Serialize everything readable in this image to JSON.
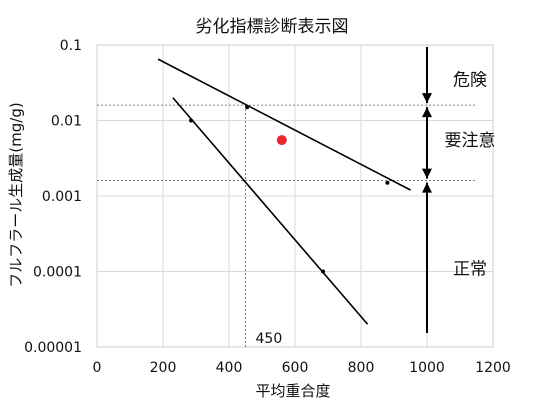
{
  "chart_data": {
    "type": "line",
    "title": "劣化指標診断表示図",
    "xlabel": "平均重合度",
    "ylabel": "フルフラール生成量(mg/g)",
    "xlim": [
      0,
      1200
    ],
    "ylim": [
      1e-05,
      0.1
    ],
    "yscale": "log",
    "x_ticks": [
      0,
      200,
      400,
      600,
      800,
      1000,
      1200
    ],
    "x_tick_labels": [
      "0",
      "200",
      "400",
      "600",
      "800",
      "1000",
      "1200"
    ],
    "y_ticks": [
      0.1,
      0.01,
      0.001,
      0.0001,
      1e-05
    ],
    "y_tick_labels": [
      "0.1",
      "0.01",
      "0.001",
      "0.0001",
      "0.00001"
    ],
    "grid": true,
    "series": [
      {
        "line": {
          "x": [
            185,
            950
          ],
          "y": [
            0.065,
            0.0012
          ]
        },
        "markers": {
          "x": [
            455,
            880
          ],
          "y": [
            0.015,
            0.0015
          ]
        }
      },
      {
        "line": {
          "x": [
            230,
            820
          ],
          "y": [
            0.02,
            2e-05
          ]
        },
        "markers": {
          "x": [
            285,
            685
          ],
          "y": [
            0.01,
            0.0001
          ]
        }
      }
    ],
    "highlight_point": {
      "x": 560,
      "y": 0.0055,
      "color": "#e8262b"
    },
    "reference_lines": {
      "horizontal": [
        0.016,
        0.0016
      ],
      "vertical": {
        "x": 450,
        "label": "450"
      }
    },
    "zone_arrow_x": 1000,
    "zones": [
      {
        "label": "危険",
        "y": 0.035
      },
      {
        "label": "要注意",
        "y": 0.0055
      },
      {
        "label": "正常",
        "y": 0.00011
      }
    ],
    "colors": {
      "line": "#000000",
      "grid": "#d9d9d9",
      "reference": "#555555",
      "highlight": "#e8262b"
    }
  }
}
